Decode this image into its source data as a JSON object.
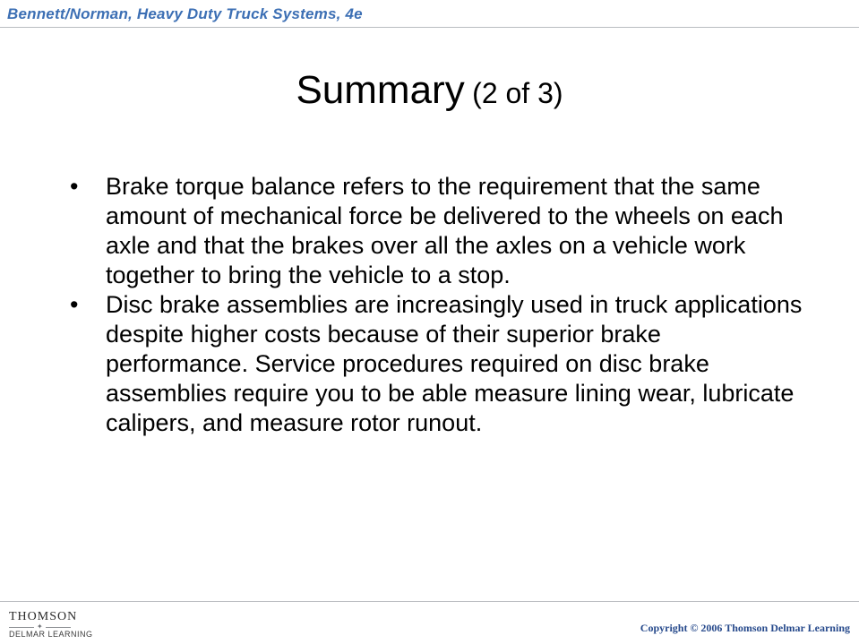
{
  "header": {
    "text": "Bennett/Norman, Heavy Duty Truck Systems, 4e"
  },
  "title": {
    "main": "Summary",
    "sub": "(2 of 3)"
  },
  "bullets": [
    "Brake torque balance refers to the requirement that the same amount of mechanical force be delivered to the wheels on each axle and that the brakes over all the axles on a vehicle work together to bring the vehicle to a stop.",
    "Disc brake assemblies are increasingly used in truck applications despite higher costs because of their superior brake performance. Service procedures required on disc brake assemblies require you to be able measure lining wear, lubricate calipers, and measure rotor runout."
  ],
  "footer": {
    "brand_top": "THOMSON",
    "brand_bottom": "DELMAR LEARNING",
    "copyright": "Copyright © 2006 Thomson Delmar Learning"
  }
}
